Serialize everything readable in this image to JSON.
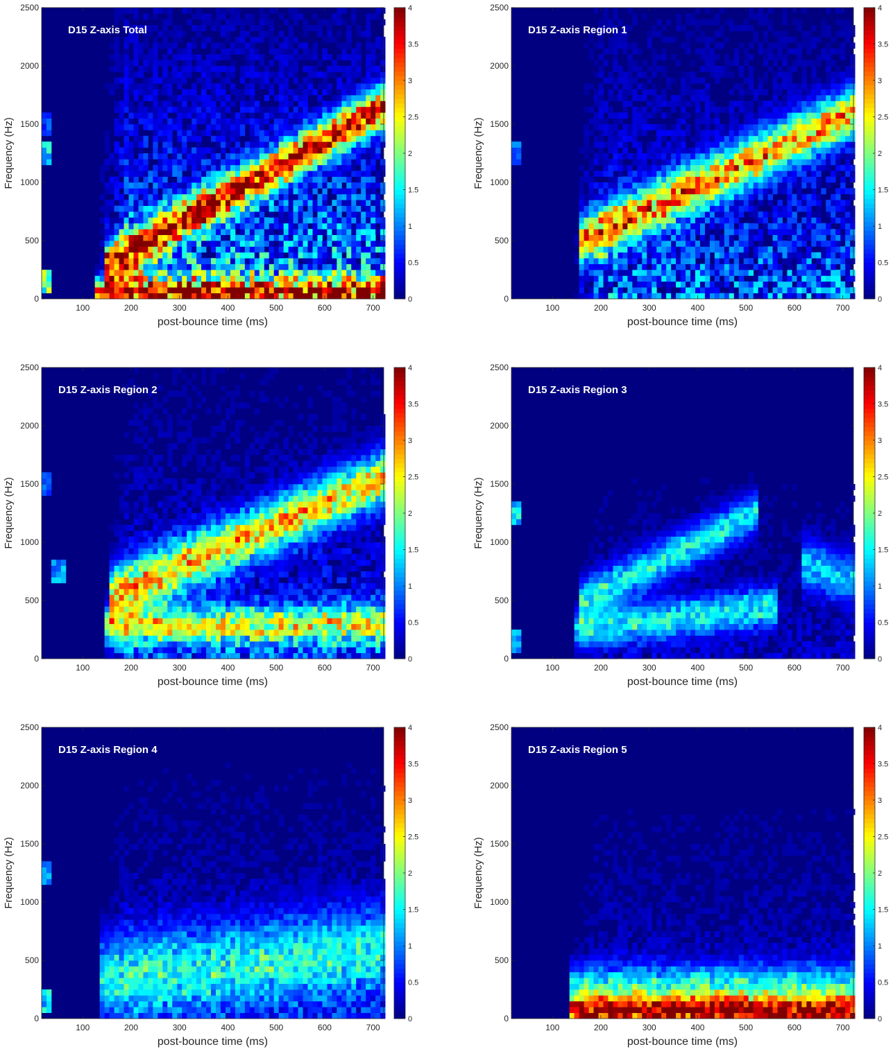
{
  "chart_data": [
    {
      "type": "heatmap",
      "title": "D15 Z-axis Total",
      "xlabel": "post-bounce time (ms)",
      "ylabel": "Frequency (Hz)",
      "xlim": [
        15,
        722
      ],
      "ylim": [
        0,
        2500
      ],
      "xticks": [
        100,
        200,
        300,
        400,
        500,
        600,
        700
      ],
      "yticks": [
        0,
        500,
        1000,
        1500,
        2000,
        2500
      ],
      "colorbar": {
        "min": 0,
        "max": 4,
        "ticks": [
          0,
          0.5,
          1,
          1.5,
          2,
          2.5,
          3,
          3.5,
          4
        ],
        "colormap": "jet"
      },
      "bin_size": {
        "time_ms": 10,
        "frequency_hz": 50
      },
      "onset_ms": 130,
      "ridges": [
        {
          "t_start": 150,
          "t_end": 720,
          "f_start": 300,
          "f_end": 1650,
          "width_hz": 170,
          "amplitude": 3.6
        },
        {
          "t_start": 130,
          "t_end": 720,
          "f_start": 60,
          "f_end": 60,
          "width_hz": 120,
          "amplitude": 3.0
        }
      ],
      "background_level": 1.8,
      "early_signal": [
        {
          "t": 20,
          "f": 1250,
          "amplitude": 1.5
        },
        {
          "t": 20,
          "f": 150,
          "amplitude": 2.0
        },
        {
          "t": 20,
          "f": 1500,
          "amplitude": 0.8
        }
      ]
    },
    {
      "type": "heatmap",
      "title": "D15 Z-axis Region 1",
      "xlabel": "post-bounce time (ms)",
      "ylabel": "Frequency (Hz)",
      "xlim": [
        15,
        722
      ],
      "ylim": [
        0,
        2500
      ],
      "xticks": [
        100,
        200,
        300,
        400,
        500,
        600,
        700
      ],
      "yticks": [
        0,
        500,
        1000,
        1500,
        2000,
        2500
      ],
      "colorbar": {
        "min": 0,
        "max": 4,
        "ticks": [
          0,
          0.5,
          1,
          1.5,
          2,
          2.5,
          3,
          3.5,
          4
        ],
        "colormap": "jet"
      },
      "bin_size": {
        "time_ms": 10,
        "frequency_hz": 50
      },
      "onset_ms": 140,
      "ridges": [
        {
          "t_start": 160,
          "t_end": 720,
          "f_start": 500,
          "f_end": 1600,
          "width_hz": 200,
          "amplitude": 2.9
        }
      ],
      "background_level": 1.2,
      "early_signal": [
        {
          "t": 20,
          "f": 1250,
          "amplitude": 1.0
        }
      ]
    },
    {
      "type": "heatmap",
      "title": "D15 Z-axis Region 2",
      "xlabel": "post-bounce time (ms)",
      "ylabel": "Frequency (Hz)",
      "xlim": [
        15,
        722
      ],
      "ylim": [
        0,
        2500
      ],
      "xticks": [
        100,
        200,
        300,
        400,
        500,
        600,
        700
      ],
      "yticks": [
        0,
        500,
        1000,
        1500,
        2000,
        2500
      ],
      "colorbar": {
        "min": 0,
        "max": 4,
        "ticks": [
          0,
          0.5,
          1,
          1.5,
          2,
          2.5,
          3,
          3.5,
          4
        ],
        "colormap": "jet"
      },
      "bin_size": {
        "time_ms": 10,
        "frequency_hz": 50
      },
      "onset_ms": 140,
      "ridges": [
        {
          "t_start": 160,
          "t_end": 720,
          "f_start": 550,
          "f_end": 1550,
          "width_hz": 220,
          "amplitude": 2.6
        },
        {
          "t_start": 150,
          "t_end": 720,
          "f_start": 280,
          "f_end": 300,
          "width_hz": 160,
          "amplitude": 2.1
        }
      ],
      "background_level": 0.9,
      "early_signal": [
        {
          "t": 20,
          "f": 1500,
          "amplitude": 0.9
        },
        {
          "t": 50,
          "f": 750,
          "amplitude": 1.2
        }
      ]
    },
    {
      "type": "heatmap",
      "title": "D15 Z-axis Region 3",
      "xlabel": "post-bounce time (ms)",
      "ylabel": "Frequency (Hz)",
      "xlim": [
        15,
        722
      ],
      "ylim": [
        0,
        2500
      ],
      "xticks": [
        100,
        200,
        300,
        400,
        500,
        600,
        700
      ],
      "yticks": [
        0,
        500,
        1000,
        1500,
        2000,
        2500
      ],
      "colorbar": {
        "min": 0,
        "max": 4,
        "ticks": [
          0,
          0.5,
          1,
          1.5,
          2,
          2.5,
          3,
          3.5,
          4
        ],
        "colormap": "jet"
      },
      "bin_size": {
        "time_ms": 10,
        "frequency_hz": 50
      },
      "onset_ms": 140,
      "ridges": [
        {
          "t_start": 160,
          "t_end": 520,
          "f_start": 500,
          "f_end": 1250,
          "width_hz": 170,
          "amplitude": 1.5
        },
        {
          "t_start": 150,
          "t_end": 560,
          "f_start": 250,
          "f_end": 450,
          "width_hz": 160,
          "amplitude": 1.5
        },
        {
          "t_start": 620,
          "t_end": 720,
          "f_start": 800,
          "f_end": 700,
          "width_hz": 200,
          "amplitude": 1.3
        }
      ],
      "background_level": 0.35,
      "early_signal": [
        {
          "t": 20,
          "f": 1250,
          "amplitude": 1.5
        },
        {
          "t": 20,
          "f": 150,
          "amplitude": 1.2
        }
      ]
    },
    {
      "type": "heatmap",
      "title": "D15 Z-axis Region 4",
      "xlabel": "post-bounce time (ms)",
      "ylabel": "Frequency (Hz)",
      "xlim": [
        15,
        722
      ],
      "ylim": [
        0,
        2500
      ],
      "xticks": [
        100,
        200,
        300,
        400,
        500,
        600,
        700
      ],
      "yticks": [
        0,
        500,
        1000,
        1500,
        2000,
        2500
      ],
      "colorbar": {
        "min": 0,
        "max": 4,
        "ticks": [
          0,
          0.5,
          1,
          1.5,
          2,
          2.5,
          3,
          3.5,
          4
        ],
        "colormap": "jet"
      },
      "bin_size": {
        "time_ms": 10,
        "frequency_hz": 50
      },
      "onset_ms": 130,
      "ridges": [
        {
          "t_start": 140,
          "t_end": 720,
          "f_start": 350,
          "f_end": 600,
          "width_hz": 350,
          "amplitude": 1.5
        }
      ],
      "background_level": 0.6,
      "early_signal": [
        {
          "t": 20,
          "f": 1250,
          "amplitude": 1.3
        },
        {
          "t": 20,
          "f": 150,
          "amplitude": 1.5
        }
      ]
    },
    {
      "type": "heatmap",
      "title": "D15 Z-axis Region 5",
      "xlabel": "post-bounce time (ms)",
      "ylabel": "Frequency (Hz)",
      "xlim": [
        15,
        722
      ],
      "ylim": [
        0,
        2500
      ],
      "xticks": [
        100,
        200,
        300,
        400,
        500,
        600,
        700
      ],
      "yticks": [
        0,
        500,
        1000,
        1500,
        2000,
        2500
      ],
      "colorbar": {
        "min": 0,
        "max": 4,
        "ticks": [
          0,
          0.5,
          1,
          1.5,
          2,
          2.5,
          3,
          3.5,
          4
        ],
        "colormap": "jet"
      },
      "bin_size": {
        "time_ms": 10,
        "frequency_hz": 50
      },
      "onset_ms": 130,
      "ridges": [
        {
          "t_start": 140,
          "t_end": 720,
          "f_start": 60,
          "f_end": 60,
          "width_hz": 120,
          "amplitude": 3.4
        },
        {
          "t_start": 140,
          "t_end": 720,
          "f_start": 250,
          "f_end": 250,
          "width_hz": 200,
          "amplitude": 1.6
        }
      ],
      "background_level": 0.45,
      "early_signal": []
    }
  ]
}
